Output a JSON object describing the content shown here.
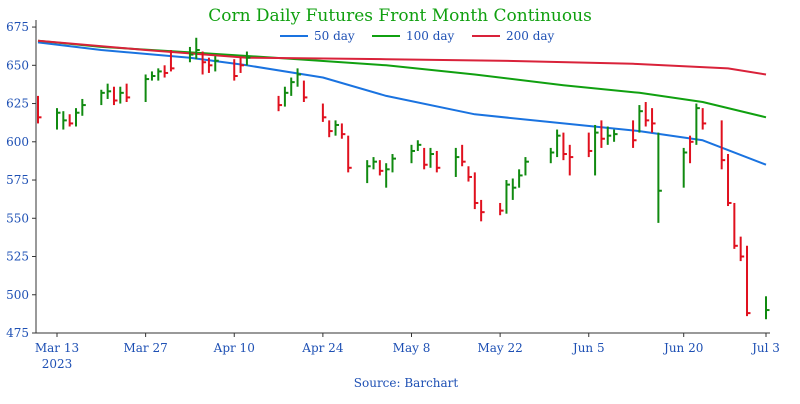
{
  "chart_data": {
    "type": "line",
    "title": "Corn Daily Futures Front Month Continuous",
    "source": "Source: Barchart",
    "xlabel": "",
    "ylabel": "",
    "ylim": [
      475,
      677
    ],
    "yticks": [
      475,
      500,
      525,
      550,
      575,
      600,
      625,
      650,
      675
    ],
    "xticks": [
      {
        "label": "Mar 13",
        "sub": "2023",
        "date": "2023-03-13"
      },
      {
        "label": "Mar 27",
        "sub": "",
        "date": "2023-03-27"
      },
      {
        "label": "Apr 10",
        "sub": "",
        "date": "2023-04-10"
      },
      {
        "label": "Apr 24",
        "sub": "",
        "date": "2023-04-24"
      },
      {
        "label": "May 8",
        "sub": "",
        "date": "2023-05-08"
      },
      {
        "label": "May 22",
        "sub": "",
        "date": "2023-05-22"
      },
      {
        "label": "Jun 5",
        "sub": "",
        "date": "2023-06-05"
      },
      {
        "label": "Jun 20",
        "sub": "",
        "date": "2023-06-20"
      },
      {
        "label": "Jul 3",
        "sub": "",
        "date": "2023-07-03"
      }
    ],
    "legend_position": "top-center",
    "grid": false,
    "colors": {
      "up": "#108a10",
      "down": "#e0101e",
      "title": "#10a010",
      "axis": "#1e50b4"
    },
    "series": [
      {
        "name": "50 day",
        "color": "#1a73e0",
        "points": [
          [
            "2023-03-10",
            665
          ],
          [
            "2023-03-20",
            660
          ],
          [
            "2023-04-03",
            655
          ],
          [
            "2023-04-12",
            650
          ],
          [
            "2023-04-24",
            642
          ],
          [
            "2023-05-04",
            630
          ],
          [
            "2023-05-18",
            618
          ],
          [
            "2023-06-01",
            612
          ],
          [
            "2023-06-13",
            607
          ],
          [
            "2023-06-23",
            601
          ],
          [
            "2023-07-03",
            585
          ]
        ]
      },
      {
        "name": "100 day",
        "color": "#10a010",
        "points": [
          [
            "2023-03-10",
            666
          ],
          [
            "2023-03-20",
            662
          ],
          [
            "2023-04-05",
            658
          ],
          [
            "2023-04-20",
            654
          ],
          [
            "2023-05-04",
            650
          ],
          [
            "2023-05-18",
            644
          ],
          [
            "2023-06-01",
            637
          ],
          [
            "2023-06-13",
            632
          ],
          [
            "2023-06-23",
            626
          ],
          [
            "2023-07-03",
            616
          ]
        ]
      },
      {
        "name": "200 day",
        "color": "#d9223a",
        "points": [
          [
            "2023-03-10",
            666
          ],
          [
            "2023-03-27",
            660
          ],
          [
            "2023-04-12",
            655
          ],
          [
            "2023-05-04",
            654
          ],
          [
            "2023-05-22",
            653
          ],
          [
            "2023-06-12",
            651
          ],
          [
            "2023-06-27",
            648
          ],
          [
            "2023-07-03",
            644
          ]
        ]
      }
    ],
    "ohlc": [
      {
        "date": "2023-03-10",
        "high": 630,
        "low": 612,
        "close": 616,
        "dir": "down"
      },
      {
        "date": "2023-03-13",
        "high": 622,
        "low": 608,
        "close": 619,
        "dir": "up"
      },
      {
        "date": "2023-03-14",
        "high": 620,
        "low": 608,
        "close": 614,
        "dir": "up"
      },
      {
        "date": "2023-03-15",
        "high": 618,
        "low": 610,
        "close": 612,
        "dir": "down"
      },
      {
        "date": "2023-03-16",
        "high": 622,
        "low": 610,
        "close": 619,
        "dir": "up"
      },
      {
        "date": "2023-03-17",
        "high": 628,
        "low": 617,
        "close": 624,
        "dir": "up"
      },
      {
        "date": "2023-03-20",
        "high": 634,
        "low": 624,
        "close": 632,
        "dir": "up"
      },
      {
        "date": "2023-03-21",
        "high": 638,
        "low": 628,
        "close": 633,
        "dir": "up"
      },
      {
        "date": "2023-03-22",
        "high": 636,
        "low": 624,
        "close": 627,
        "dir": "down"
      },
      {
        "date": "2023-03-23",
        "high": 636,
        "low": 625,
        "close": 632,
        "dir": "up"
      },
      {
        "date": "2023-03-24",
        "high": 638,
        "low": 626,
        "close": 629,
        "dir": "down"
      },
      {
        "date": "2023-03-27",
        "high": 644,
        "low": 626,
        "close": 641,
        "dir": "up"
      },
      {
        "date": "2023-03-28",
        "high": 646,
        "low": 640,
        "close": 643,
        "dir": "up"
      },
      {
        "date": "2023-03-29",
        "high": 648,
        "low": 640,
        "close": 646,
        "dir": "up"
      },
      {
        "date": "2023-03-30",
        "high": 650,
        "low": 642,
        "close": 645,
        "dir": "down"
      },
      {
        "date": "2023-03-31",
        "high": 660,
        "low": 646,
        "close": 648,
        "dir": "down"
      },
      {
        "date": "2023-04-03",
        "high": 662,
        "low": 652,
        "close": 657,
        "dir": "up"
      },
      {
        "date": "2023-04-04",
        "high": 668,
        "low": 654,
        "close": 660,
        "dir": "up"
      },
      {
        "date": "2023-04-05",
        "high": 659,
        "low": 644,
        "close": 652,
        "dir": "down"
      },
      {
        "date": "2023-04-06",
        "high": 655,
        "low": 645,
        "close": 650,
        "dir": "down"
      },
      {
        "date": "2023-04-07",
        "high": 656,
        "low": 646,
        "close": 653,
        "dir": "up"
      },
      {
        "date": "2023-04-10",
        "high": 654,
        "low": 640,
        "close": 643,
        "dir": "down"
      },
      {
        "date": "2023-04-11",
        "high": 655,
        "low": 645,
        "close": 650,
        "dir": "down"
      },
      {
        "date": "2023-04-12",
        "high": 659,
        "low": 650,
        "close": 655,
        "dir": "up"
      },
      {
        "date": "2023-04-17",
        "high": 630,
        "low": 620,
        "close": 624,
        "dir": "down"
      },
      {
        "date": "2023-04-18",
        "high": 636,
        "low": 623,
        "close": 632,
        "dir": "up"
      },
      {
        "date": "2023-04-19",
        "high": 642,
        "low": 630,
        "close": 639,
        "dir": "up"
      },
      {
        "date": "2023-04-20",
        "high": 648,
        "low": 636,
        "close": 644,
        "dir": "up"
      },
      {
        "date": "2023-04-21",
        "high": 640,
        "low": 626,
        "close": 629,
        "dir": "down"
      },
      {
        "date": "2023-04-24",
        "high": 625,
        "low": 613,
        "close": 616,
        "dir": "down"
      },
      {
        "date": "2023-04-25",
        "high": 614,
        "low": 603,
        "close": 607,
        "dir": "down"
      },
      {
        "date": "2023-04-26",
        "high": 614,
        "low": 604,
        "close": 611,
        "dir": "up"
      },
      {
        "date": "2023-04-27",
        "high": 612,
        "low": 602,
        "close": 605,
        "dir": "down"
      },
      {
        "date": "2023-04-28",
        "high": 604,
        "low": 580,
        "close": 583,
        "dir": "down"
      },
      {
        "date": "2023-05-01",
        "high": 588,
        "low": 573,
        "close": 584,
        "dir": "up"
      },
      {
        "date": "2023-05-02",
        "high": 590,
        "low": 582,
        "close": 587,
        "dir": "up"
      },
      {
        "date": "2023-05-03",
        "high": 588,
        "low": 578,
        "close": 581,
        "dir": "down"
      },
      {
        "date": "2023-05-04",
        "high": 586,
        "low": 570,
        "close": 582,
        "dir": "up"
      },
      {
        "date": "2023-05-05",
        "high": 592,
        "low": 580,
        "close": 589,
        "dir": "up"
      },
      {
        "date": "2023-05-08",
        "high": 598,
        "low": 586,
        "close": 594,
        "dir": "up"
      },
      {
        "date": "2023-05-09",
        "high": 601,
        "low": 594,
        "close": 598,
        "dir": "up"
      },
      {
        "date": "2023-05-10",
        "high": 596,
        "low": 582,
        "close": 585,
        "dir": "down"
      },
      {
        "date": "2023-05-11",
        "high": 596,
        "low": 583,
        "close": 592,
        "dir": "up"
      },
      {
        "date": "2023-05-12",
        "high": 594,
        "low": 580,
        "close": 583,
        "dir": "down"
      },
      {
        "date": "2023-05-15",
        "high": 596,
        "low": 577,
        "close": 590,
        "dir": "up"
      },
      {
        "date": "2023-05-16",
        "high": 598,
        "low": 584,
        "close": 587,
        "dir": "down"
      },
      {
        "date": "2023-05-17",
        "high": 584,
        "low": 574,
        "close": 577,
        "dir": "down"
      },
      {
        "date": "2023-05-18",
        "high": 580,
        "low": 556,
        "close": 560,
        "dir": "down"
      },
      {
        "date": "2023-05-19",
        "high": 562,
        "low": 548,
        "close": 554,
        "dir": "down"
      },
      {
        "date": "2023-05-22",
        "high": 560,
        "low": 552,
        "close": 555,
        "dir": "down"
      },
      {
        "date": "2023-05-23",
        "high": 575,
        "low": 553,
        "close": 572,
        "dir": "up"
      },
      {
        "date": "2023-05-24",
        "high": 576,
        "low": 562,
        "close": 570,
        "dir": "up"
      },
      {
        "date": "2023-05-25",
        "high": 582,
        "low": 570,
        "close": 578,
        "dir": "up"
      },
      {
        "date": "2023-05-26",
        "high": 590,
        "low": 578,
        "close": 587,
        "dir": "up"
      },
      {
        "date": "2023-05-30",
        "high": 596,
        "low": 586,
        "close": 593,
        "dir": "up"
      },
      {
        "date": "2023-05-31",
        "high": 608,
        "low": 590,
        "close": 604,
        "dir": "up"
      },
      {
        "date": "2023-06-01",
        "high": 606,
        "low": 588,
        "close": 592,
        "dir": "down"
      },
      {
        "date": "2023-06-02",
        "high": 598,
        "low": 578,
        "close": 590,
        "dir": "down"
      },
      {
        "date": "2023-06-05",
        "high": 606,
        "low": 590,
        "close": 594,
        "dir": "down"
      },
      {
        "date": "2023-06-06",
        "high": 611,
        "low": 578,
        "close": 606,
        "dir": "up"
      },
      {
        "date": "2023-06-07",
        "high": 614,
        "low": 596,
        "close": 602,
        "dir": "down"
      },
      {
        "date": "2023-06-08",
        "high": 610,
        "low": 598,
        "close": 604,
        "dir": "up"
      },
      {
        "date": "2023-06-09",
        "high": 608,
        "low": 600,
        "close": 605,
        "dir": "up"
      },
      {
        "date": "2023-06-12",
        "high": 614,
        "low": 596,
        "close": 601,
        "dir": "down"
      },
      {
        "date": "2023-06-13",
        "high": 624,
        "low": 606,
        "close": 620,
        "dir": "up"
      },
      {
        "date": "2023-06-14",
        "high": 626,
        "low": 610,
        "close": 614,
        "dir": "down"
      },
      {
        "date": "2023-06-15",
        "high": 622,
        "low": 606,
        "close": 612,
        "dir": "down"
      },
      {
        "date": "2023-06-16",
        "high": 606,
        "low": 547,
        "close": 568,
        "dir": "up"
      },
      {
        "date": "2023-06-20",
        "high": 596,
        "low": 570,
        "close": 593,
        "dir": "up"
      },
      {
        "date": "2023-06-21",
        "high": 604,
        "low": 586,
        "close": 600,
        "dir": "down"
      },
      {
        "date": "2023-06-22",
        "high": 625,
        "low": 598,
        "close": 622,
        "dir": "up"
      },
      {
        "date": "2023-06-23",
        "high": 622,
        "low": 608,
        "close": 612,
        "dir": "down"
      },
      {
        "date": "2023-06-26",
        "high": 614,
        "low": 582,
        "close": 588,
        "dir": "down"
      },
      {
        "date": "2023-06-27",
        "high": 592,
        "low": 558,
        "close": 560,
        "dir": "down"
      },
      {
        "date": "2023-06-28",
        "high": 560,
        "low": 530,
        "close": 532,
        "dir": "down"
      },
      {
        "date": "2023-06-29",
        "high": 538,
        "low": 522,
        "close": 525,
        "dir": "down"
      },
      {
        "date": "2023-06-30",
        "high": 532,
        "low": 486,
        "close": 488,
        "dir": "down"
      },
      {
        "date": "2023-07-03",
        "high": 499,
        "low": 484,
        "close": 490,
        "dir": "up"
      }
    ]
  }
}
